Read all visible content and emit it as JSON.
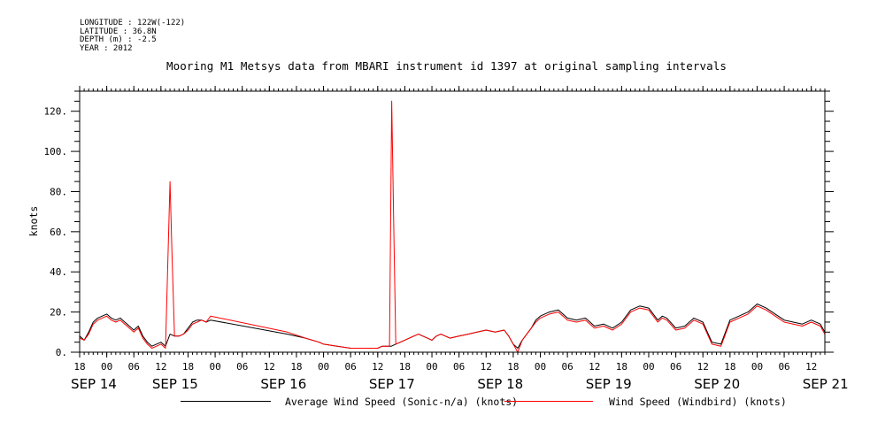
{
  "header": {
    "longitude": "LONGITUDE : 122W(-122)",
    "latitude": "LATITUDE : 36.8N",
    "depth": "DEPTH (m) : -2.5",
    "year": "YEAR : 2012"
  },
  "colors": {
    "average_series": "#000000",
    "windbird_series": "#ff0000",
    "axis": "#000000"
  },
  "chart_data": {
    "type": "line",
    "title": "Mooring M1 Metsys data from MBARI instrument id 1397 at original sampling intervals",
    "ylabel": "knots",
    "xlabel": "",
    "ylim": [
      0,
      130
    ],
    "yticks": [
      0,
      20,
      40,
      60,
      80,
      100,
      120
    ],
    "ytick_labels": [
      "0.",
      "20.",
      "40.",
      "60.",
      "80.",
      "100.",
      "120."
    ],
    "x_axis": {
      "units": "hours since 2012-09-14 18:00",
      "range": [
        0,
        165
      ],
      "hour_ticks": [
        0,
        6,
        12,
        18,
        24,
        30,
        36,
        42,
        48,
        54,
        60,
        66,
        72,
        78,
        84,
        90,
        96,
        102,
        108,
        114,
        120,
        126,
        132,
        138,
        144,
        150,
        156,
        162
      ],
      "hour_tick_labels": [
        "18",
        "00",
        "06",
        "12",
        "18",
        "00",
        "06",
        "12",
        "18",
        "00",
        "06",
        "12",
        "18",
        "00",
        "06",
        "12",
        "18",
        "00",
        "06",
        "12",
        "18",
        "00",
        "06",
        "12",
        "18",
        "00",
        "06",
        "12"
      ],
      "date_labels": [
        {
          "hour": 0,
          "label": "SEP 14"
        },
        {
          "hour": 18,
          "label": "SEP 15"
        },
        {
          "hour": 42,
          "label": "SEP 16"
        },
        {
          "hour": 66,
          "label": "SEP 17"
        },
        {
          "hour": 90,
          "label": "SEP 18"
        },
        {
          "hour": 114,
          "label": "SEP 19"
        },
        {
          "hour": 138,
          "label": "SEP 20"
        },
        {
          "hour": 162,
          "label": "SEP 21"
        }
      ]
    },
    "legend": {
      "placement": "bottom"
    },
    "series": [
      {
        "name": "Average Wind Speed (Sonic-n/a) (knots)",
        "color": "#000000",
        "x": [
          0,
          1,
          2,
          3,
          4,
          5,
          6,
          7,
          8,
          9,
          10,
          11,
          12,
          13,
          14,
          15,
          16,
          17,
          18,
          19,
          20,
          21,
          22,
          23,
          24,
          25,
          26,
          27,
          28,
          29,
          46,
          50,
          53,
          54,
          57,
          60,
          63,
          66,
          67,
          69,
          70,
          71,
          72,
          73,
          74,
          75,
          76,
          77,
          78,
          79,
          80,
          82,
          84,
          86,
          88,
          90,
          92,
          94,
          95,
          96,
          97,
          98,
          99,
          100,
          101,
          102,
          104,
          106,
          108,
          110,
          112,
          114,
          116,
          118,
          120,
          122,
          124,
          126,
          128,
          129,
          130,
          132,
          134,
          136,
          138,
          140,
          142,
          144,
          146,
          148,
          150,
          152,
          154,
          156,
          158,
          160,
          162,
          164,
          165
        ],
        "y": [
          8,
          6,
          10,
          15,
          17,
          18,
          19,
          17,
          16,
          17,
          15,
          13,
          11,
          13,
          8,
          5,
          3,
          4,
          5,
          3,
          9,
          8,
          8,
          9,
          12,
          15,
          16,
          16,
          15,
          16,
          9,
          7,
          5,
          4,
          3,
          2,
          2,
          2,
          3,
          3,
          4,
          5,
          6,
          7,
          8,
          9,
          8,
          7,
          6,
          8,
          9,
          7,
          8,
          9,
          10,
          11,
          10,
          11,
          8,
          4,
          2,
          6,
          9,
          12,
          16,
          18,
          20,
          21,
          17,
          16,
          17,
          13,
          14,
          12,
          15,
          21,
          23,
          22,
          16,
          18,
          17,
          12,
          13,
          17,
          15,
          5,
          4,
          16,
          18,
          20,
          24,
          22,
          19,
          16,
          15,
          14,
          16,
          14,
          10
        ]
      },
      {
        "name": "Wind Speed (Windbird) (knots)",
        "color": "#ff0000",
        "x": [
          0,
          1,
          2,
          3,
          4,
          5,
          6,
          7,
          8,
          9,
          10,
          11,
          12,
          13,
          14,
          15,
          16,
          17,
          18,
          19,
          20,
          20.5,
          21,
          22,
          23,
          24,
          25,
          26,
          27,
          28,
          29,
          46,
          50,
          53,
          54,
          57,
          60,
          63,
          66,
          67,
          68.6,
          69.1,
          69.6,
          70,
          71,
          72,
          73,
          74,
          75,
          76,
          77,
          78,
          79,
          80,
          82,
          84,
          86,
          88,
          90,
          92,
          94,
          95,
          96,
          97,
          98,
          99,
          100,
          101,
          102,
          104,
          106,
          108,
          110,
          112,
          114,
          116,
          118,
          120,
          122,
          124,
          126,
          128,
          129,
          130,
          132,
          134,
          136,
          138,
          140,
          142,
          144,
          146,
          148,
          150,
          152,
          154,
          156,
          158,
          160,
          162,
          164,
          165
        ],
        "y": [
          7,
          6,
          9,
          14,
          16,
          17,
          18,
          16,
          15,
          16,
          14,
          12,
          10,
          12,
          7,
          4,
          2,
          3,
          4,
          2,
          85,
          45,
          8,
          8,
          9,
          11,
          14,
          15,
          16,
          15,
          18,
          10,
          7,
          5,
          4,
          3,
          2,
          2,
          2,
          3,
          3,
          125,
          55,
          4,
          5,
          6,
          7,
          8,
          9,
          8,
          7,
          6,
          8,
          9,
          7,
          8,
          9,
          10,
          11,
          10,
          11,
          8,
          4,
          0,
          6,
          9,
          12,
          15,
          17,
          19,
          20,
          16,
          15,
          16,
          12,
          13,
          11,
          14,
          20,
          22,
          21,
          15,
          17,
          16,
          11,
          12,
          16,
          14,
          4,
          3,
          15,
          17,
          19,
          23,
          21,
          18,
          15,
          14,
          13,
          15,
          13,
          9
        ]
      }
    ]
  }
}
